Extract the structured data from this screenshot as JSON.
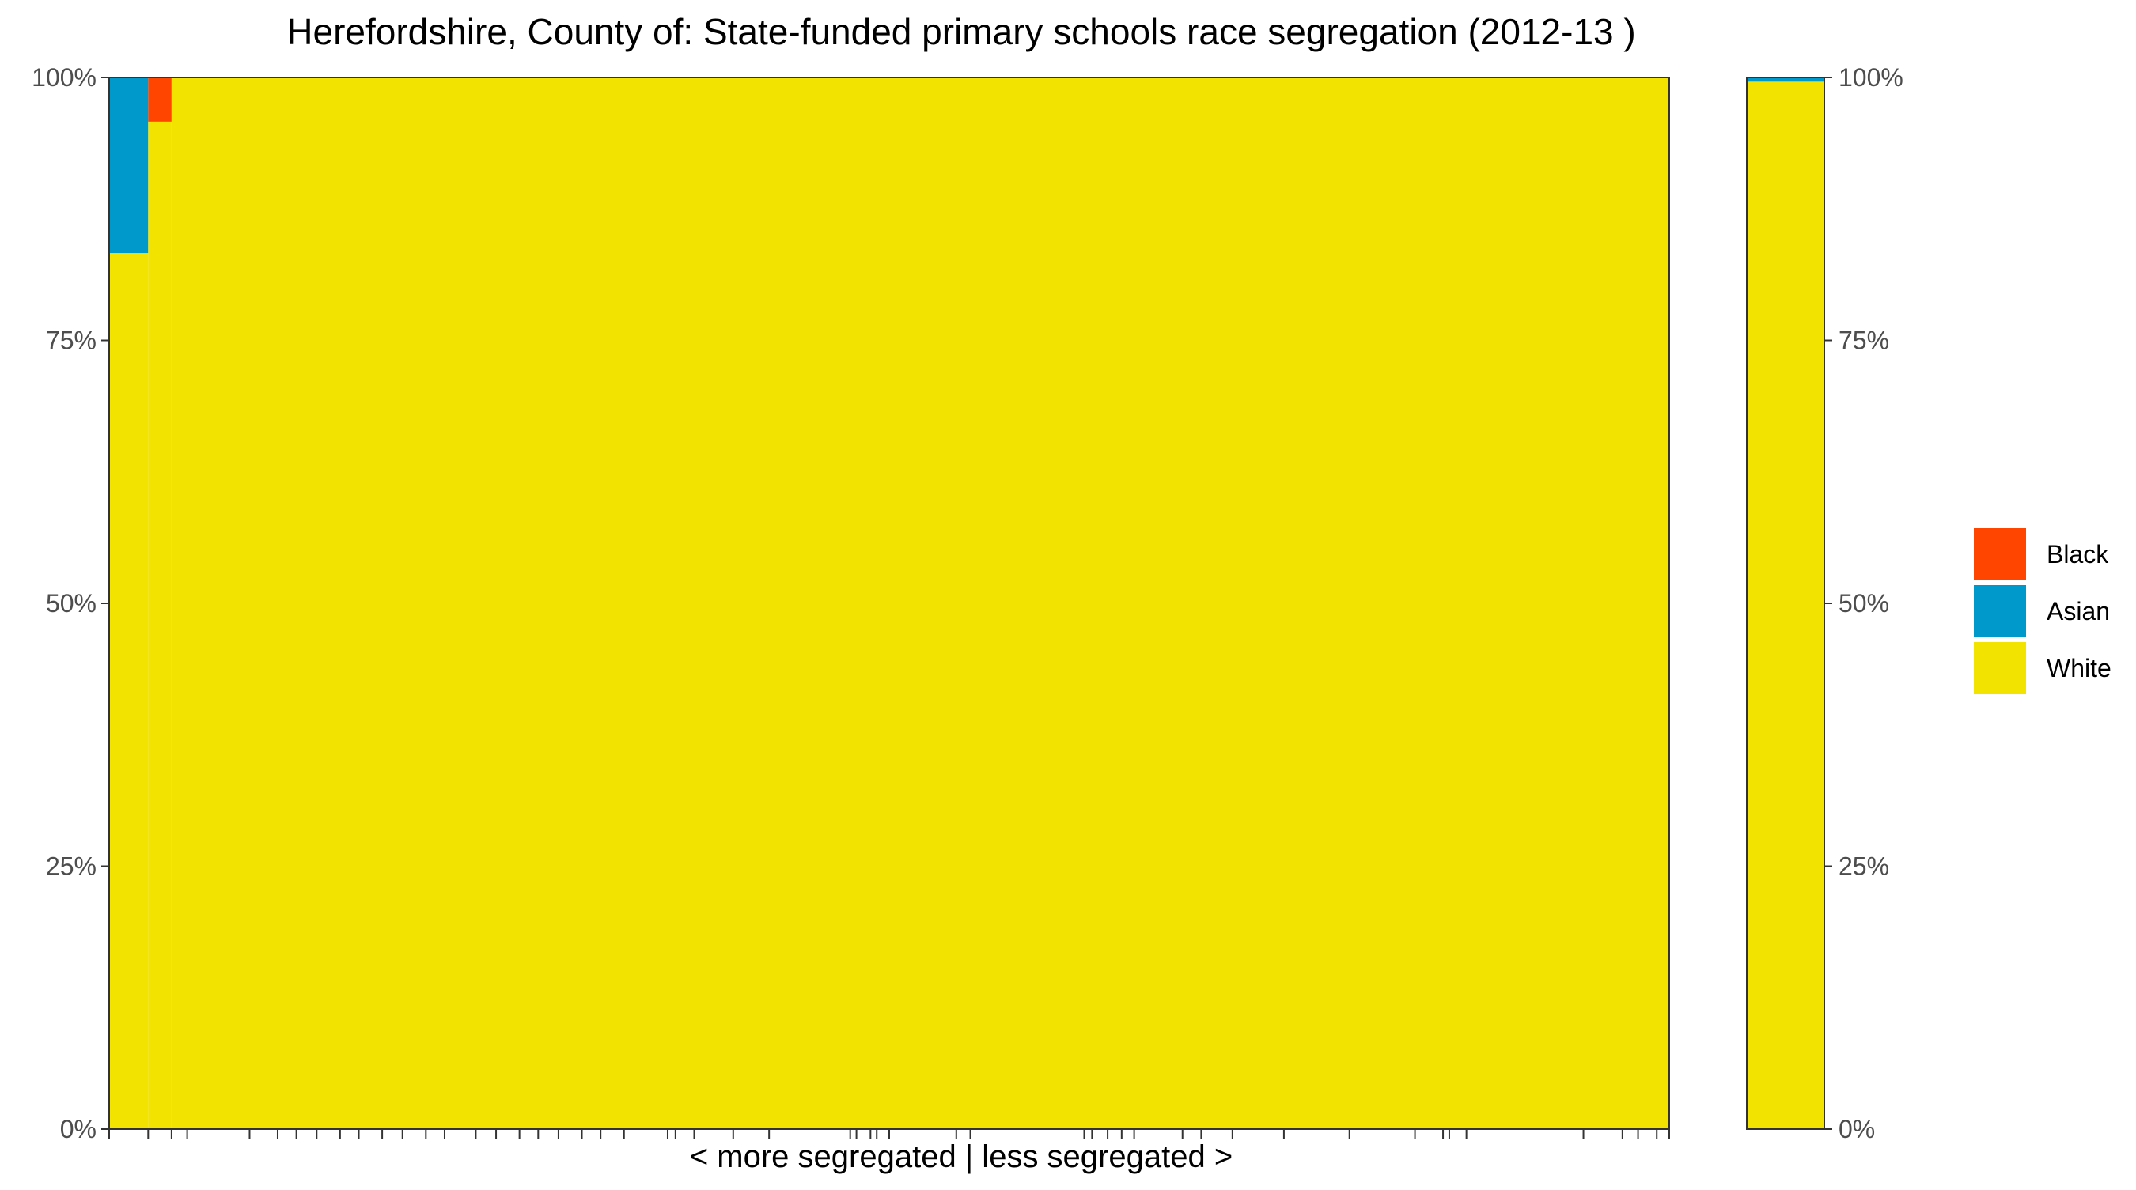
{
  "chart_data": {
    "type": "bar",
    "stacked": true,
    "title": "Herefordshire, County of: State-funded primary schools race segregation (2012-13 )",
    "xlabel": "< more segregated | less segregated >",
    "ylabel": "",
    "ylim": [
      0,
      100
    ],
    "y_ticks": [
      "0%",
      "25%",
      "50%",
      "75%",
      "100%"
    ],
    "y_tick_values": [
      0,
      25,
      50,
      75,
      100
    ],
    "grid": false,
    "legend_position": "right",
    "legend": [
      {
        "name": "Black",
        "color": "#FF4500"
      },
      {
        "name": "Asian",
        "color": "#0099CC"
      },
      {
        "name": "White",
        "color": "#F2E300"
      }
    ],
    "school_panel": {
      "x_start": 0,
      "x_end": 100,
      "schools": [
        {
          "start": 0.0,
          "width": 2.5,
          "white": 83.3,
          "asian": 16.7,
          "black": 0
        },
        {
          "start": 2.5,
          "width": 1.5,
          "white": 95.8,
          "asian": 0,
          "black": 4.2
        },
        {
          "start": 4.0,
          "width": 96.0,
          "white": 100,
          "asian": 0,
          "black": 0
        }
      ],
      "tick_positions": [
        0,
        2.5,
        4.0,
        5.0,
        9.0,
        10.8,
        12.0,
        13.3,
        14.8,
        16.0,
        17.5,
        18.8,
        20.3,
        21.5,
        23.5,
        24.8,
        26.3,
        27.5,
        28.8,
        30.3,
        31.5,
        33.0,
        35.8,
        36.3,
        37.5,
        40.0,
        42.3,
        47.5,
        47.9,
        48.8,
        49.2,
        50.0,
        54.3,
        55.2,
        62.5,
        63.0,
        64.0,
        64.9,
        65.7,
        68.8,
        70.0,
        72.0,
        75.3,
        79.5,
        83.7,
        85.5,
        85.9,
        87.0,
        94.5,
        97.0,
        98.0,
        99.2,
        100
      ]
    },
    "total_panel": {
      "label": "",
      "white": 99.6,
      "asian": 0.4,
      "black": 0
    }
  }
}
